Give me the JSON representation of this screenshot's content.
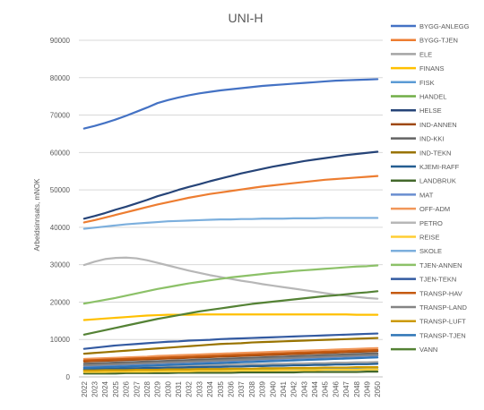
{
  "chart_data": {
    "type": "line",
    "title": "UNI-H",
    "xlabel": "",
    "ylabel": "Arbeidsinnsats, mNOK",
    "ylim": [
      0,
      90000
    ],
    "yticks": [
      0,
      10000,
      20000,
      30000,
      40000,
      50000,
      60000,
      70000,
      80000,
      90000
    ],
    "x": [
      2022,
      2023,
      2024,
      2025,
      2026,
      2027,
      2028,
      2029,
      2030,
      2031,
      2032,
      2033,
      2034,
      2035,
      2036,
      2037,
      2038,
      2039,
      2040,
      2041,
      2042,
      2043,
      2044,
      2045,
      2046,
      2047,
      2048,
      2049,
      2050
    ],
    "grid": true,
    "legend_position": "right",
    "series": [
      {
        "name": "BYGG-ANLEGG",
        "color": "#4472C4",
        "values": [
          66400,
          67100,
          67900,
          68800,
          69800,
          70900,
          72000,
          73200,
          74000,
          74700,
          75300,
          75800,
          76200,
          76600,
          76900,
          77200,
          77500,
          77800,
          78000,
          78200,
          78400,
          78600,
          78800,
          79000,
          79200,
          79300,
          79400,
          79500,
          79600
        ]
      },
      {
        "name": "BYGG-TJEN",
        "color": "#ED7D31",
        "values": [
          41300,
          41900,
          42600,
          43300,
          44000,
          44700,
          45400,
          46100,
          46700,
          47300,
          47900,
          48400,
          48900,
          49300,
          49700,
          50100,
          50500,
          50900,
          51200,
          51500,
          51800,
          52100,
          52400,
          52700,
          52900,
          53100,
          53300,
          53500,
          53700
        ]
      },
      {
        "name": "ELE",
        "color": "#A5A5A5",
        "values": [
          2600,
          2600,
          2700,
          2700,
          2800,
          2800,
          2900,
          2900,
          3000,
          3000,
          3100,
          3100,
          3200,
          3200,
          3300,
          3300,
          3400,
          3400,
          3500,
          3500,
          3600,
          3600,
          3700,
          3700,
          3800,
          3800,
          3900,
          3900,
          4000
        ]
      },
      {
        "name": "FINANS",
        "color": "#FFC000",
        "values": [
          15200,
          15400,
          15600,
          15800,
          16000,
          16200,
          16400,
          16500,
          16600,
          16600,
          16600,
          16700,
          16700,
          16700,
          16700,
          16700,
          16700,
          16700,
          16700,
          16700,
          16700,
          16700,
          16700,
          16700,
          16700,
          16700,
          16600,
          16600,
          16600
        ]
      },
      {
        "name": "FISK",
        "color": "#5B9BD5",
        "values": [
          1900,
          1900,
          1900,
          2000,
          2000,
          2000,
          2000,
          2100,
          2100,
          2100,
          2100,
          2100,
          2200,
          2200,
          2200,
          2200,
          2200,
          2300,
          2300,
          2300,
          2300,
          2300,
          2400,
          2400,
          2400,
          2400,
          2400,
          2500,
          2500
        ]
      },
      {
        "name": "HANDEL",
        "color": "#70AD47",
        "values": [
          1500,
          1500,
          1500,
          1500,
          1600,
          1600,
          1600,
          1600,
          1600,
          1700,
          1700,
          1700,
          1700,
          1700,
          1700,
          1800,
          1800,
          1800,
          1800,
          1800,
          1800,
          1900,
          1900,
          1900,
          1900,
          1900,
          1900,
          2000,
          2000
        ]
      },
      {
        "name": "HELSE",
        "color": "#264478",
        "values": [
          42300,
          43000,
          43800,
          44700,
          45500,
          46400,
          47300,
          48300,
          49100,
          50000,
          50800,
          51500,
          52300,
          53000,
          53700,
          54400,
          55000,
          55600,
          56200,
          56700,
          57200,
          57700,
          58100,
          58500,
          58900,
          59300,
          59600,
          59900,
          60200
        ]
      },
      {
        "name": "IND-ANNEN",
        "color": "#9E480E",
        "values": [
          4100,
          4200,
          4300,
          4400,
          4500,
          4600,
          4700,
          4800,
          4900,
          5000,
          5100,
          5200,
          5300,
          5400,
          5500,
          5600,
          5700,
          5800,
          5900,
          6000,
          6100,
          6200,
          6300,
          6400,
          6500,
          6600,
          6700,
          6800,
          6900
        ]
      },
      {
        "name": "IND-KKI",
        "color": "#636363",
        "values": [
          3500,
          3600,
          3700,
          3800,
          3900,
          4000,
          4100,
          4200,
          4300,
          4400,
          4500,
          4600,
          4700,
          4800,
          4900,
          5000,
          5100,
          5200,
          5300,
          5400,
          5500,
          5600,
          5700,
          5800,
          5900,
          6000,
          6100,
          6200,
          6300
        ]
      },
      {
        "name": "IND-TEKN",
        "color": "#997300",
        "values": [
          6200,
          6400,
          6600,
          6800,
          7000,
          7200,
          7400,
          7600,
          7800,
          8000,
          8200,
          8400,
          8600,
          8800,
          8900,
          9000,
          9200,
          9300,
          9400,
          9500,
          9600,
          9700,
          9800,
          9900,
          10000,
          10100,
          10200,
          10300,
          10400
        ]
      },
      {
        "name": "KJEMI-RAFF",
        "color": "#255E91",
        "values": [
          2100,
          2100,
          2200,
          2200,
          2300,
          2300,
          2400,
          2400,
          2500,
          2500,
          2600,
          2600,
          2700,
          2700,
          2800,
          2800,
          2900,
          2900,
          3000,
          3000,
          3100,
          3100,
          3200,
          3200,
          3300,
          3300,
          3400,
          3400,
          3500
        ]
      },
      {
        "name": "LANDBRUK",
        "color": "#43682B",
        "values": [
          900,
          900,
          900,
          900,
          1000,
          1000,
          1000,
          1000,
          1000,
          1100,
          1100,
          1100,
          1100,
          1100,
          1100,
          1200,
          1200,
          1200,
          1200,
          1200,
          1200,
          1300,
          1300,
          1300,
          1300,
          1300,
          1300,
          1400,
          1400
        ]
      },
      {
        "name": "MAT",
        "color": "#698ED0",
        "values": [
          2900,
          3000,
          3100,
          3200,
          3300,
          3400,
          3500,
          3600,
          3700,
          3800,
          3900,
          4000,
          4100,
          4200,
          4300,
          4400,
          4500,
          4600,
          4700,
          4800,
          4900,
          5000,
          5100,
          5200,
          5300,
          5400,
          5500,
          5600,
          5700
        ]
      },
      {
        "name": "OFF-ADM",
        "color": "#F1975A",
        "values": [
          4800,
          4900,
          5000,
          5100,
          5200,
          5300,
          5400,
          5600,
          5700,
          5800,
          5900,
          6000,
          6100,
          6200,
          6300,
          6400,
          6500,
          6600,
          6700,
          6800,
          6900,
          7000,
          7100,
          7200,
          7300,
          7400,
          7500,
          7600,
          7700
        ]
      },
      {
        "name": "PETRO",
        "color": "#B7B7B7",
        "values": [
          29900,
          30800,
          31500,
          31800,
          31900,
          31700,
          31200,
          30500,
          29800,
          29100,
          28400,
          27800,
          27200,
          26700,
          26200,
          25700,
          25300,
          24800,
          24400,
          24000,
          23600,
          23200,
          22800,
          22400,
          22000,
          21700,
          21400,
          21100,
          20900
        ]
      },
      {
        "name": "REISE",
        "color": "#FFCD33",
        "values": [
          1300,
          1300,
          1300,
          1400,
          1400,
          1400,
          1400,
          1500,
          1500,
          1500,
          1500,
          1600,
          1600,
          1600,
          1600,
          1700,
          1700,
          1700,
          1700,
          1800,
          1800,
          1800,
          1800,
          1900,
          1900,
          1900,
          1900,
          2000,
          2000
        ]
      },
      {
        "name": "SKOLE",
        "color": "#7CAFDD",
        "values": [
          39600,
          39900,
          40200,
          40500,
          40800,
          41000,
          41200,
          41400,
          41600,
          41700,
          41800,
          41900,
          42000,
          42100,
          42100,
          42200,
          42200,
          42300,
          42300,
          42300,
          42400,
          42400,
          42400,
          42500,
          42500,
          42500,
          42500,
          42500,
          42500
        ]
      },
      {
        "name": "TJEN-ANNEN",
        "color": "#8CC168",
        "values": [
          19600,
          20100,
          20600,
          21100,
          21700,
          22300,
          22900,
          23500,
          24000,
          24500,
          25000,
          25400,
          25800,
          26200,
          26600,
          26900,
          27200,
          27500,
          27800,
          28000,
          28300,
          28500,
          28700,
          28900,
          29100,
          29300,
          29500,
          29600,
          29800
        ]
      },
      {
        "name": "TJEN-TEKN",
        "color": "#335AA1",
        "values": [
          7500,
          7800,
          8100,
          8400,
          8600,
          8800,
          9000,
          9200,
          9400,
          9500,
          9700,
          9800,
          9900,
          10100,
          10200,
          10300,
          10400,
          10500,
          10600,
          10700,
          10800,
          10900,
          11000,
          11100,
          11200,
          11300,
          11400,
          11500,
          11600
        ]
      },
      {
        "name": "TRANSP-HAV",
        "color": "#C55A11",
        "values": [
          4400,
          4500,
          4600,
          4700,
          4800,
          4900,
          5000,
          5100,
          5200,
          5300,
          5400,
          5500,
          5600,
          5700,
          5800,
          5900,
          6000,
          6100,
          6200,
          6300,
          6400,
          6500,
          6600,
          6700,
          6800,
          6900,
          7000,
          7100,
          7200
        ]
      },
      {
        "name": "TRANSP-LAND",
        "color": "#848484",
        "values": [
          3100,
          3200,
          3300,
          3400,
          3500,
          3600,
          3700,
          3800,
          3900,
          4000,
          4100,
          4200,
          4300,
          4400,
          4500,
          4600,
          4700,
          4800,
          4900,
          5000,
          5100,
          5200,
          5300,
          5400,
          5500,
          5600,
          5700,
          5800,
          5900
        ]
      },
      {
        "name": "TRANSP-LUFT",
        "color": "#CC9A00",
        "values": [
          1700,
          1700,
          1800,
          1800,
          1800,
          1900,
          1900,
          1900,
          2000,
          2000,
          2000,
          2100,
          2100,
          2100,
          2200,
          2200,
          2200,
          2300,
          2300,
          2300,
          2400,
          2400,
          2400,
          2500,
          2500,
          2500,
          2600,
          2600,
          2600
        ]
      },
      {
        "name": "TRANSP-TJEN",
        "color": "#2E75B6",
        "values": [
          2400,
          2500,
          2600,
          2700,
          2800,
          2900,
          3000,
          3100,
          3200,
          3300,
          3400,
          3500,
          3600,
          3700,
          3800,
          3900,
          4000,
          4100,
          4200,
          4300,
          4400,
          4500,
          4600,
          4700,
          4800,
          4900,
          5000,
          5100,
          5200
        ]
      },
      {
        "name": "VANN",
        "color": "#548235",
        "values": [
          11300,
          11900,
          12500,
          13100,
          13700,
          14300,
          14900,
          15500,
          16000,
          16500,
          17000,
          17500,
          17900,
          18300,
          18700,
          19100,
          19500,
          19800,
          20100,
          20400,
          20700,
          21000,
          21300,
          21600,
          21800,
          22100,
          22400,
          22600,
          22900
        ]
      }
    ]
  }
}
